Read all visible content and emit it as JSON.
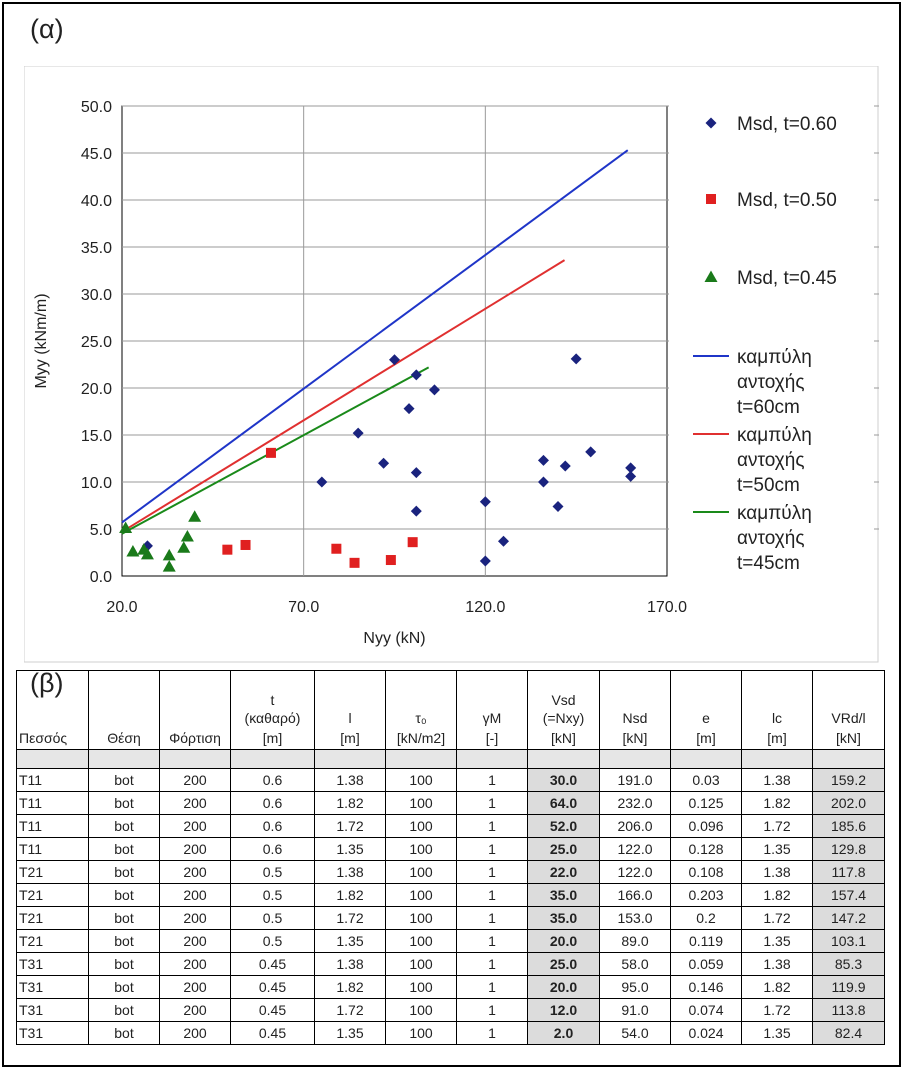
{
  "panel_a_label": "(α)",
  "panel_b_label": "(β)",
  "chart_data": {
    "type": "scatter",
    "title": "",
    "xlabel": "Nyy (kN)",
    "ylabel": "Myy (kNm/m)",
    "xlim": [
      20,
      170
    ],
    "ylim": [
      0,
      50
    ],
    "x_ticks": [
      20,
      70,
      120,
      170
    ],
    "x_tick_labels": [
      "20.0",
      "70.0",
      "120.0",
      "170.0"
    ],
    "y_ticks": [
      0,
      5,
      10,
      15,
      20,
      25,
      30,
      35,
      40,
      45,
      50
    ],
    "y_tick_labels": [
      "0.0",
      "5.0",
      "10.0",
      "15.0",
      "20.0",
      "25.0",
      "30.0",
      "35.0",
      "40.0",
      "45.0",
      "50.0"
    ],
    "grid": "vertical",
    "legend_position": "right",
    "series": [
      {
        "name": "Msd, t=0.60",
        "marker": "diamond",
        "color": "#1a237e",
        "points": [
          [
            27,
            3.2
          ],
          [
            75,
            10
          ],
          [
            85,
            15.2
          ],
          [
            92,
            12
          ],
          [
            95,
            23
          ],
          [
            99,
            17.8
          ],
          [
            101,
            21.4
          ],
          [
            101,
            11
          ],
          [
            101,
            6.9
          ],
          [
            106,
            19.8
          ],
          [
            120,
            1.6
          ],
          [
            120,
            7.9
          ],
          [
            125,
            3.7
          ],
          [
            136,
            12.3
          ],
          [
            136,
            10
          ],
          [
            140,
            7.4
          ],
          [
            142,
            11.7
          ],
          [
            145,
            23.1
          ],
          [
            149,
            13.2
          ],
          [
            160,
            11.5
          ],
          [
            160,
            10.6
          ]
        ]
      },
      {
        "name": "Msd, t=0.50",
        "marker": "square",
        "color": "#e02020",
        "points": [
          [
            49,
            2.8
          ],
          [
            54,
            3.3
          ],
          [
            61,
            13.1
          ],
          [
            79,
            2.9
          ],
          [
            84,
            1.4
          ],
          [
            94,
            1.7
          ],
          [
            100,
            3.6
          ]
        ]
      },
      {
        "name": "Msd, t=0.45",
        "marker": "triangle",
        "color": "#1a7a1a",
        "points": [
          [
            21,
            5.1
          ],
          [
            23,
            2.6
          ],
          [
            26,
            2.8
          ],
          [
            27,
            2.3
          ],
          [
            33,
            2.2
          ],
          [
            33,
            1.0
          ],
          [
            37,
            3.0
          ],
          [
            38,
            4.2
          ],
          [
            40,
            6.3
          ]
        ]
      }
    ],
    "lines": [
      {
        "name_line1": "καμπύλη",
        "name_line2": "αντοχής",
        "name_line3": "t=60cm",
        "color": "#1f35c8",
        "points": [
          [
            20,
            5.7
          ],
          [
            159.2,
            45.3
          ]
        ]
      },
      {
        "name_line1": "καμπύλη",
        "name_line2": "αντοχής",
        "name_line3": "t=50cm",
        "color": "#e03030",
        "points": [
          [
            20,
            4.7
          ],
          [
            141.8,
            33.6
          ]
        ]
      },
      {
        "name_line1": "καμπύλη",
        "name_line2": "αντοχής",
        "name_line3": "t=45cm",
        "color": "#1a8a1a",
        "points": [
          [
            20,
            4.5
          ],
          [
            104.4,
            22.2
          ]
        ]
      }
    ]
  },
  "table": {
    "headers": [
      {
        "line1": "",
        "line2": "Πεσσός"
      },
      {
        "line1": "",
        "line2": "Θέση"
      },
      {
        "line1": "",
        "line2": "Φόρτιση"
      },
      {
        "line1": "t",
        "line1b": "(καθαρό)",
        "line2": "[m]"
      },
      {
        "line1": "l",
        "line2": "[m]"
      },
      {
        "line1": "τ₀",
        "line2": "[kN/m2]"
      },
      {
        "line1": "γM",
        "line2": "[-]"
      },
      {
        "line1": "Vsd",
        "line1b": "(=Nxy)",
        "line2": "[kN]"
      },
      {
        "line1": "Nsd",
        "line2": "[kN]"
      },
      {
        "line1": "e",
        "line2": "[m]"
      },
      {
        "line1": "lc",
        "line2": "[m]"
      },
      {
        "line1": "VRd/l",
        "line2": "[kN]"
      }
    ],
    "rows": [
      [
        "T11",
        "bot",
        "200",
        "0.6",
        "1.38",
        "100",
        "1",
        "30.0",
        "191.0",
        "0.03",
        "1.38",
        "159.2"
      ],
      [
        "T11",
        "bot",
        "200",
        "0.6",
        "1.82",
        "100",
        "1",
        "64.0",
        "232.0",
        "0.125",
        "1.82",
        "202.0"
      ],
      [
        "T11",
        "bot",
        "200",
        "0.6",
        "1.72",
        "100",
        "1",
        "52.0",
        "206.0",
        "0.096",
        "1.72",
        "185.6"
      ],
      [
        "T11",
        "bot",
        "200",
        "0.6",
        "1.35",
        "100",
        "1",
        "25.0",
        "122.0",
        "0.128",
        "1.35",
        "129.8"
      ],
      [
        "T21",
        "bot",
        "200",
        "0.5",
        "1.38",
        "100",
        "1",
        "22.0",
        "122.0",
        "0.108",
        "1.38",
        "117.8"
      ],
      [
        "T21",
        "bot",
        "200",
        "0.5",
        "1.82",
        "100",
        "1",
        "35.0",
        "166.0",
        "0.203",
        "1.82",
        "157.4"
      ],
      [
        "T21",
        "bot",
        "200",
        "0.5",
        "1.72",
        "100",
        "1",
        "35.0",
        "153.0",
        "0.2",
        "1.72",
        "147.2"
      ],
      [
        "T21",
        "bot",
        "200",
        "0.5",
        "1.35",
        "100",
        "1",
        "20.0",
        "89.0",
        "0.119",
        "1.35",
        "103.1"
      ],
      [
        "T31",
        "bot",
        "200",
        "0.45",
        "1.38",
        "100",
        "1",
        "25.0",
        "58.0",
        "0.059",
        "1.38",
        "85.3"
      ],
      [
        "T31",
        "bot",
        "200",
        "0.45",
        "1.82",
        "100",
        "1",
        "20.0",
        "95.0",
        "0.146",
        "1.82",
        "119.9"
      ],
      [
        "T31",
        "bot",
        "200",
        "0.45",
        "1.72",
        "100",
        "1",
        "12.0",
        "91.0",
        "0.074",
        "1.72",
        "113.8"
      ],
      [
        "T31",
        "bot",
        "200",
        "0.45",
        "1.35",
        "100",
        "1",
        "2.0",
        "54.0",
        "0.024",
        "1.35",
        "82.4"
      ]
    ]
  }
}
